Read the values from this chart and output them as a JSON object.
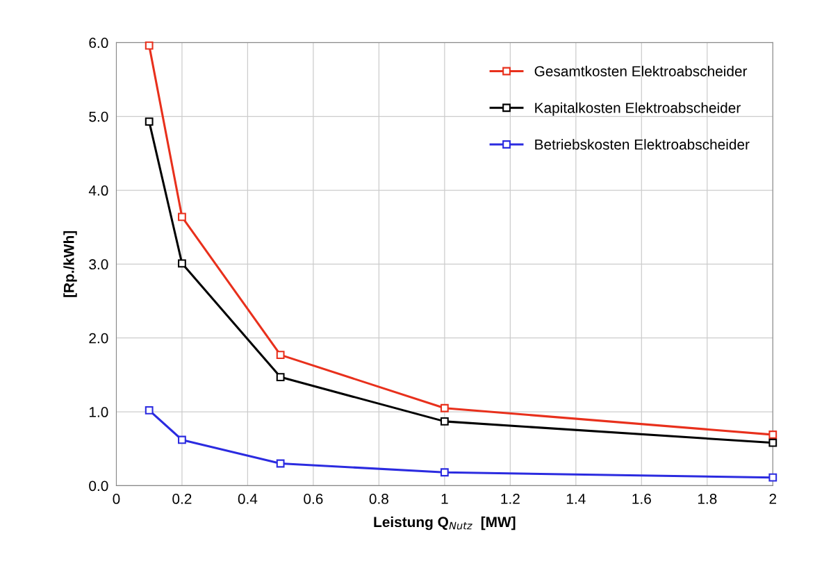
{
  "chart_data": {
    "type": "line",
    "xlabel": "Leistung Q$_{Nutz}$  [MW]",
    "ylabel": "[Rp./kWh]",
    "x": [
      0.1,
      0.2,
      0.5,
      1,
      2
    ],
    "series": [
      {
        "name": "Gesamtkosten Elektroabscheider",
        "color": "#e8301c",
        "values": [
          5.96,
          3.64,
          1.77,
          1.05,
          0.69
        ]
      },
      {
        "name": "Kapitalkosten Elektroabscheider",
        "color": "#000000",
        "values": [
          4.93,
          3.01,
          1.47,
          0.87,
          0.58
        ]
      },
      {
        "name": "Betriebskosten Elektroabscheider",
        "color": "#2b2be0",
        "values": [
          1.02,
          0.62,
          0.3,
          0.18,
          0.11
        ]
      }
    ],
    "xlim": [
      0,
      2
    ],
    "xticks": [
      0,
      0.2,
      0.4,
      0.6,
      0.8,
      1,
      1.2,
      1.4,
      1.6,
      1.8,
      2
    ],
    "ylim": [
      0,
      6
    ],
    "yticks": [
      {
        "value": 0,
        "label": "0.0"
      },
      {
        "value": 1,
        "label": "1.0"
      },
      {
        "value": 2,
        "label": "2.0"
      },
      {
        "value": 3,
        "label": "3.0"
      },
      {
        "value": 4,
        "label": "4.0"
      },
      {
        "value": 5,
        "label": "5.0"
      },
      {
        "value": 6,
        "label": "6.0"
      }
    ],
    "grid": true,
    "legend": "top right",
    "marker": "square",
    "line_style": "solid"
  }
}
